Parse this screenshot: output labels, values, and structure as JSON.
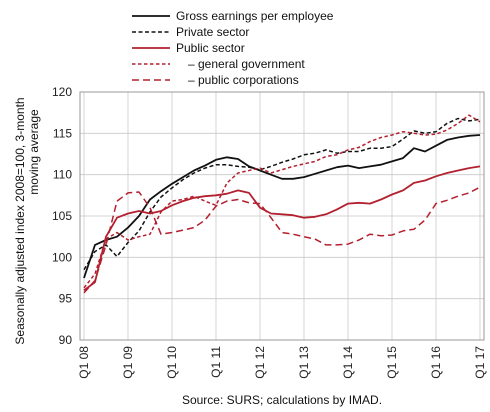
{
  "chart_data": {
    "type": "line",
    "ylabel": "Seasonally adjusted index 2008=100, 3-month moving average",
    "ylim": [
      90,
      120
    ],
    "y_ticks": [
      90,
      95,
      100,
      105,
      110,
      115,
      120
    ],
    "x_tick_labels": [
      "Q1 08",
      "Q1 09",
      "Q1 10",
      "Q1 11",
      "Q1 12",
      "Q1 13",
      "Q1 14",
      "Q1 15",
      "Q1 16",
      "Q1 17"
    ],
    "x": [
      "2008Q1",
      "2008Q2",
      "2008Q3",
      "2008Q4",
      "2009Q1",
      "2009Q2",
      "2009Q3",
      "2009Q4",
      "2010Q1",
      "2010Q2",
      "2010Q3",
      "2010Q4",
      "2011Q1",
      "2011Q2",
      "2011Q3",
      "2011Q4",
      "2012Q1",
      "2012Q2",
      "2012Q3",
      "2012Q4",
      "2013Q1",
      "2013Q2",
      "2013Q3",
      "2013Q4",
      "2014Q1",
      "2014Q2",
      "2014Q3",
      "2014Q4",
      "2015Q1",
      "2015Q2",
      "2015Q3",
      "2015Q4",
      "2016Q1",
      "2016Q2",
      "2016Q3",
      "2016Q4",
      "2017Q1"
    ],
    "grid": true,
    "legend_position": "top",
    "source": "Source: SURS; calculations by IMAD.",
    "series": [
      {
        "name": "Gross earnings per employee",
        "color": "#111111",
        "dash": "solid",
        "values": [
          97.5,
          101.5,
          102.1,
          102.5,
          103.6,
          105.0,
          107.0,
          108.0,
          108.9,
          109.7,
          110.5,
          111.1,
          111.8,
          112.1,
          111.9,
          111.0,
          110.5,
          110.0,
          109.5,
          109.5,
          109.7,
          110.1,
          110.5,
          110.9,
          111.1,
          110.8,
          111.0,
          111.2,
          111.6,
          112.0,
          113.2,
          112.8,
          113.5,
          114.2,
          114.5,
          114.7,
          114.8
        ]
      },
      {
        "name": "Private sector",
        "color": "#111111",
        "dash": "dashed",
        "values": [
          98.5,
          100.7,
          101.5,
          100.1,
          101.8,
          103.2,
          105.5,
          107.3,
          108.4,
          109.4,
          110.2,
          110.8,
          111.2,
          111.2,
          111.0,
          110.9,
          110.6,
          111.0,
          111.5,
          111.9,
          112.4,
          112.6,
          113.0,
          112.6,
          112.8,
          112.8,
          113.2,
          113.2,
          113.4,
          114.3,
          115.3,
          115.0,
          115.2,
          116.2,
          116.8,
          116.5,
          116.7
        ]
      },
      {
        "name": "Public sector",
        "color": "#b3202f",
        "dash": "solid",
        "values": [
          96.0,
          97.0,
          102.5,
          104.8,
          105.3,
          105.6,
          105.3,
          105.6,
          106.3,
          106.8,
          107.2,
          107.4,
          107.5,
          107.7,
          108.1,
          107.8,
          106.0,
          105.3,
          105.2,
          105.1,
          104.8,
          104.9,
          105.2,
          105.8,
          106.5,
          106.6,
          106.5,
          107.0,
          107.6,
          108.1,
          109.0,
          109.3,
          109.8,
          110.2,
          110.5,
          110.8,
          111.0
        ]
      },
      {
        "name": "– general government",
        "color": "#b3202f",
        "dash": "fine-dash",
        "values": [
          96.3,
          98.0,
          102.2,
          103.0,
          102.1,
          102.5,
          102.8,
          105.5,
          106.8,
          107.0,
          107.4,
          106.8,
          106.3,
          109.0,
          110.2,
          110.5,
          110.8,
          110.2,
          110.6,
          111.0,
          111.3,
          111.6,
          112.2,
          112.4,
          113.0,
          113.3,
          114.0,
          114.5,
          114.8,
          115.2,
          115.0,
          114.8,
          114.9,
          115.4,
          116.2,
          117.2,
          116.4
        ]
      },
      {
        "name": "– public corporations",
        "color": "#b3202f",
        "dash": "long-dash",
        "values": [
          95.7,
          97.2,
          101.5,
          106.8,
          107.8,
          107.9,
          106.0,
          102.8,
          103.0,
          103.3,
          103.6,
          104.5,
          106.2,
          106.8,
          107.0,
          106.6,
          106.5,
          104.8,
          103.0,
          102.8,
          102.5,
          102.2,
          101.5,
          101.5,
          101.6,
          102.1,
          102.8,
          102.6,
          102.7,
          103.2,
          103.4,
          104.5,
          106.5,
          106.9,
          107.4,
          107.8,
          108.5
        ]
      }
    ]
  }
}
